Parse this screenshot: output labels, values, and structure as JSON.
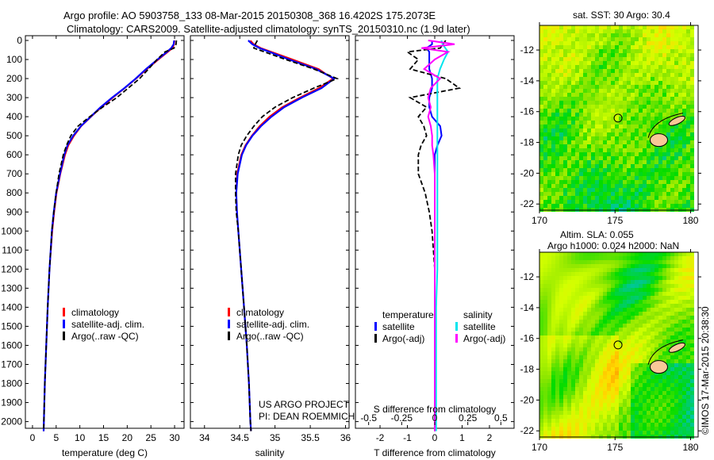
{
  "header": {
    "line1": "Argo profile: AO 5903758_133 08-Mar-2015 20150308_368 16.4202S 175.2073E",
    "line2": "Climatology: CARS2009. Satellite-adjusted climatology: synTS_20150310.nc (1.9d later)"
  },
  "colors": {
    "climatology": "#ff0000",
    "satellite": "#0000ff",
    "argo": "#000000",
    "s_satellite": "#00e5ee",
    "s_argo": "#ff00ff",
    "land": "#f8c898"
  },
  "chart_data": [
    {
      "type": "line",
      "id": "temperature",
      "xlabel": "temperature (deg C)",
      "ylabel": "",
      "xlim": [
        -1.5,
        32
      ],
      "ylim": [
        2050,
        0
      ],
      "xticks": [
        0,
        5,
        10,
        15,
        20,
        25,
        30
      ],
      "yticks": [
        0,
        100,
        200,
        300,
        400,
        500,
        600,
        700,
        800,
        900,
        1000,
        1100,
        1200,
        1300,
        1400,
        1500,
        1600,
        1700,
        1800,
        1900,
        2000
      ],
      "legend": [
        "climatology",
        "satellite-adj. clim.",
        "Argo(..raw -QC)"
      ],
      "depth": [
        0,
        20,
        40,
        60,
        100,
        150,
        200,
        250,
        300,
        350,
        400,
        450,
        500,
        550,
        600,
        700,
        800,
        900,
        1000,
        1200,
        1400,
        1600,
        1800,
        2000,
        2050
      ],
      "series": [
        {
          "name": "climatology",
          "values": [
            30.0,
            29.9,
            29.6,
            28.6,
            26.6,
            24.2,
            21.9,
            19.5,
            17.0,
            14.6,
            12.4,
            10.3,
            8.8,
            7.6,
            6.9,
            5.9,
            5.1,
            4.6,
            4.2,
            3.6,
            3.2,
            2.9,
            2.6,
            2.4,
            2.35
          ]
        },
        {
          "name": "satellite-adj. clim.",
          "values": [
            29.9,
            29.8,
            29.3,
            28.4,
            26.4,
            24.0,
            21.8,
            19.4,
            16.8,
            14.4,
            12.3,
            10.2,
            8.6,
            7.4,
            6.7,
            5.8,
            5.0,
            4.5,
            4.1,
            3.6,
            3.2,
            2.9,
            2.6,
            2.4,
            2.35
          ]
        },
        {
          "name": "Argo(..raw -QC)",
          "values": [
            30.4,
            30.3,
            29.9,
            28.0,
            26.3,
            24.5,
            22.6,
            20.2,
            17.8,
            14.8,
            12.1,
            9.6,
            8.1,
            7.2,
            6.5,
            5.6,
            5.0,
            4.5,
            4.1,
            3.6,
            3.2,
            2.9,
            2.6,
            2.4,
            2.35
          ]
        }
      ]
    },
    {
      "type": "line",
      "id": "salinity",
      "xlabel": "salinity",
      "ylabel": "",
      "xlim": [
        33.8,
        36.05
      ],
      "ylim": [
        2050,
        0
      ],
      "xticks": [
        34,
        34.5,
        35,
        35.5,
        36
      ],
      "legend": [
        "climatology",
        "satellite-adj. clim.",
        "Argo(..raw -QC)"
      ],
      "depth": [
        0,
        20,
        40,
        60,
        100,
        150,
        200,
        250,
        300,
        350,
        400,
        450,
        500,
        550,
        600,
        700,
        800,
        900,
        1000,
        1200,
        1400,
        1600,
        1800,
        2000,
        2050
      ],
      "series": [
        {
          "name": "climatology",
          "values": [
            34.65,
            34.7,
            34.8,
            34.95,
            35.25,
            35.62,
            35.82,
            35.62,
            35.35,
            35.1,
            34.92,
            34.78,
            34.67,
            34.58,
            34.52,
            34.46,
            34.45,
            34.46,
            34.48,
            34.52,
            34.56,
            34.6,
            34.63,
            34.65,
            34.66
          ]
        },
        {
          "name": "satellite-adj. clim.",
          "values": [
            34.62,
            34.68,
            34.78,
            34.92,
            35.2,
            35.58,
            35.84,
            35.66,
            35.38,
            35.13,
            34.95,
            34.8,
            34.68,
            34.59,
            34.53,
            34.47,
            34.45,
            34.46,
            34.48,
            34.52,
            34.56,
            34.6,
            34.63,
            34.65,
            34.66
          ]
        },
        {
          "name": "Argo(..raw -QC)",
          "values": [
            34.75,
            34.72,
            34.7,
            34.85,
            35.15,
            35.55,
            35.88,
            35.55,
            35.25,
            35.0,
            34.82,
            34.7,
            34.6,
            34.52,
            34.48,
            34.44,
            34.44,
            34.45,
            34.48,
            34.52,
            34.56,
            34.6,
            34.63,
            34.65,
            34.66
          ]
        }
      ],
      "annotations": [
        "US ARGO PROJECT",
        "PI: DEAN ROEMMICH"
      ]
    },
    {
      "type": "line",
      "id": "difference",
      "xlabel": "T difference from climatology",
      "x2label": "S difference from climatology",
      "xlim": [
        -2.9,
        2.9
      ],
      "x2lim": [
        -0.6,
        0.6
      ],
      "ylim": [
        2050,
        0
      ],
      "xticks": [
        -2,
        -1,
        0,
        1,
        2
      ],
      "x2ticks": [
        -0.5,
        -0.25,
        0,
        0.25,
        0.5
      ],
      "x2ticklabels": [
        "-0.5",
        "-0.25",
        "0",
        "0.25",
        "0.5"
      ],
      "legend_titles": [
        "temperature",
        "salinity"
      ],
      "legend": [
        "satellite",
        "Argo(-adj)",
        "satellite",
        "Argo(-adj)"
      ],
      "depth": [
        0,
        20,
        40,
        60,
        100,
        150,
        200,
        250,
        300,
        350,
        400,
        450,
        500,
        550,
        600,
        700,
        800,
        900,
        1000,
        1200,
        1400,
        1600,
        1800,
        2000,
        2050
      ],
      "series": [
        {
          "name": "T satellite",
          "axis": "T",
          "values": [
            -0.1,
            -0.1,
            -0.3,
            -0.2,
            -0.2,
            -0.2,
            -0.1,
            -0.1,
            -0.2,
            -0.2,
            -0.1,
            0.2,
            0.25,
            0.1,
            0.0,
            0.0,
            0.0,
            0.0,
            0.0,
            0.0,
            0.0,
            0.0,
            0.0,
            0.0,
            0.0
          ]
        },
        {
          "name": "T Argo(-adj)",
          "axis": "T",
          "values": [
            0.4,
            0.3,
            0.2,
            -1.0,
            -0.6,
            -0.9,
            0.4,
            0.9,
            -0.9,
            -0.3,
            -0.6,
            -0.4,
            -0.3,
            -0.5,
            -0.6,
            -0.6,
            -0.35,
            -0.2,
            -0.1,
            0.0,
            0.0,
            0.0,
            0.0,
            0.0,
            0.0
          ]
        },
        {
          "name": "S satellite",
          "axis": "S",
          "values": [
            0.05,
            0.06,
            0.08,
            0.1,
            0.07,
            0.04,
            0.02,
            0.02,
            0.02,
            0.02,
            0.02,
            0.02,
            0.02,
            0.02,
            0.02,
            0.02,
            0.02,
            0.02,
            0.02,
            0.02,
            0.01,
            0.01,
            0.01,
            0.01,
            0.01
          ]
        },
        {
          "name": "S Argo(-adj)",
          "axis": "S",
          "values": [
            -0.05,
            0.15,
            -0.1,
            0.1,
            0.0,
            -0.08,
            0.04,
            -0.03,
            -0.05,
            -0.03,
            -0.05,
            -0.03,
            -0.02,
            -0.02,
            -0.01,
            0.0,
            0.0,
            0.0,
            0.0,
            0.0,
            0.0,
            0.0,
            0.0,
            0.0,
            0.0
          ]
        }
      ]
    },
    {
      "type": "heatmap",
      "id": "sst_map",
      "title": "sat. SST: 30 Argo: 30.4",
      "xlim": [
        170,
        180.5
      ],
      "ylim": [
        -22.4,
        -10.4
      ],
      "xticks": [
        170,
        175,
        180
      ],
      "yticks": [
        -12,
        -14,
        -16,
        -18,
        -20,
        -22
      ],
      "marker": {
        "lon": 175.2,
        "lat": -16.42
      }
    },
    {
      "type": "heatmap",
      "id": "sla_map",
      "title": "Altim. SLA: 0.055",
      "subtitle": "Argo h1000: 0.024 h2000: NaN",
      "xlim": [
        170,
        180.5
      ],
      "ylim": [
        -22.4,
        -10.4
      ],
      "xticks": [
        170,
        175,
        180
      ],
      "yticks": [
        -12,
        -14,
        -16,
        -18,
        -20,
        -22
      ],
      "marker": {
        "lon": 175.2,
        "lat": -16.42
      }
    }
  ],
  "footer": {
    "credit": "©IMOS 17-Mar-2015 20:38:30"
  }
}
